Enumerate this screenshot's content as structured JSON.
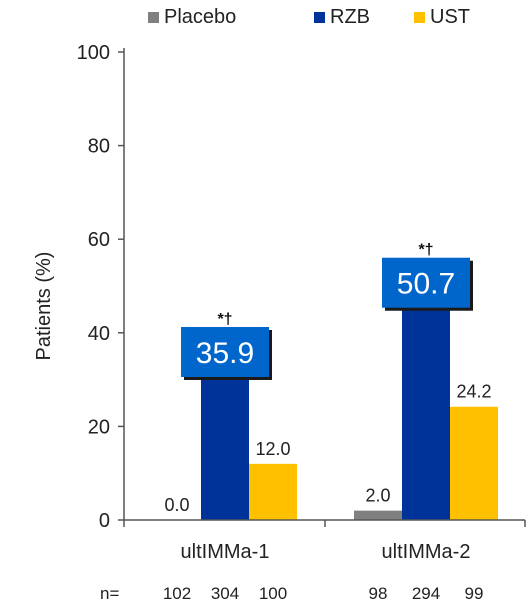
{
  "chart_data": {
    "type": "bar",
    "ylabel": "Patients (%)",
    "ylim": [
      0,
      100
    ],
    "yticks": [
      0,
      20,
      40,
      60,
      80,
      100
    ],
    "grid": false,
    "legend_position": "top",
    "categories": [
      "ultIMMa-1",
      "ultIMMa-2"
    ],
    "series": [
      {
        "name": "Placebo",
        "color": "#808080",
        "values": [
          0.0,
          2.0
        ],
        "labels": [
          "0.0",
          "2.0"
        ]
      },
      {
        "name": "RZB",
        "color": "#003399",
        "values": [
          35.9,
          50.7
        ],
        "labels": [
          "35.9",
          "50.7"
        ]
      },
      {
        "name": "UST",
        "color": "#FFC000",
        "values": [
          12.0,
          24.2
        ],
        "labels": [
          "12.0",
          "24.2"
        ]
      }
    ],
    "highlight_box_color": "#0066CC",
    "significance_marker": "*†",
    "n_row": {
      "label": "n=",
      "groups": [
        [
          "102",
          "304",
          "100"
        ],
        [
          "98",
          "294",
          "99"
        ]
      ]
    }
  }
}
